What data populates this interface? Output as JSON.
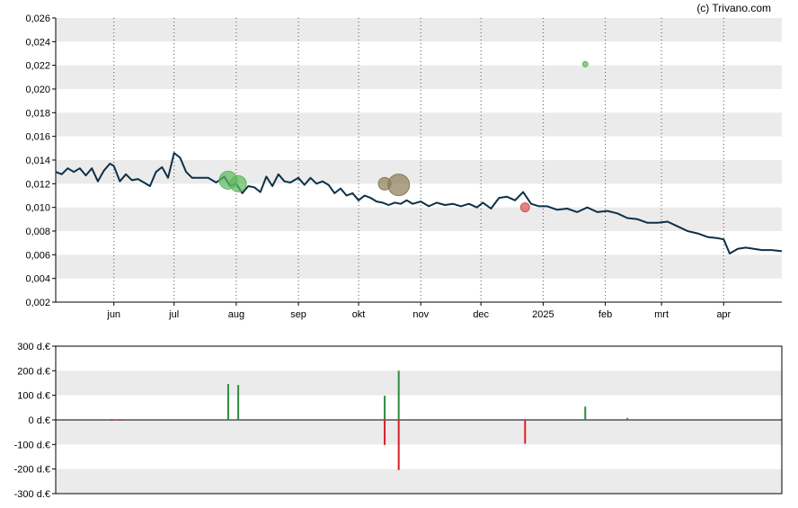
{
  "credit": "(c) Trivano.com",
  "chart_data": [
    {
      "type": "line",
      "x_ticks": [
        "jun",
        "jul",
        "aug",
        "sep",
        "okt",
        "nov",
        "dec",
        "2025",
        "feb",
        "mrt",
        "apr"
      ],
      "y_ticks": [
        "0,002",
        "0,004",
        "0,006",
        "0,008",
        "0,010",
        "0,012",
        "0,014",
        "0,016",
        "0,018",
        "0,020",
        "0,022",
        "0,024",
        "0,026"
      ],
      "ylim": [
        0.002,
        0.026
      ],
      "xlim": [
        "2024-05-03",
        "2025-04-30"
      ],
      "grid": true,
      "colors": {
        "line": "#0d3048",
        "band": "#ebebeb",
        "buy": "#5cb85c",
        "sell": "#d9534f",
        "big": "#8b7a55"
      },
      "series": [
        {
          "x": [
            "2024-05-03",
            "2024-05-06",
            "2024-05-09",
            "2024-05-12",
            "2024-05-15",
            "2024-05-18",
            "2024-05-21",
            "2024-05-24",
            "2024-05-27",
            "2024-05-30",
            "2024-06-01",
            "2024-06-04",
            "2024-06-07",
            "2024-06-10",
            "2024-06-13",
            "2024-06-16",
            "2024-06-19",
            "2024-06-22",
            "2024-06-25",
            "2024-06-28",
            "2024-07-01",
            "2024-07-04",
            "2024-07-07",
            "2024-07-10",
            "2024-07-14",
            "2024-07-18",
            "2024-07-22",
            "2024-07-26",
            "2024-07-29",
            "2024-08-01",
            "2024-08-04",
            "2024-08-07",
            "2024-08-10",
            "2024-08-13",
            "2024-08-16",
            "2024-08-19",
            "2024-08-22",
            "2024-08-25",
            "2024-08-28",
            "2024-09-01",
            "2024-09-04",
            "2024-09-07",
            "2024-09-10",
            "2024-09-13",
            "2024-09-16",
            "2024-09-19",
            "2024-09-22",
            "2024-09-25",
            "2024-09-28",
            "2024-10-01",
            "2024-10-04",
            "2024-10-07",
            "2024-10-10",
            "2024-10-13",
            "2024-10-16",
            "2024-10-19",
            "2024-10-22",
            "2024-10-25",
            "2024-10-28",
            "2024-11-01",
            "2024-11-05",
            "2024-11-09",
            "2024-11-13",
            "2024-11-17",
            "2024-11-21",
            "2024-11-25",
            "2024-11-29",
            "2024-12-02",
            "2024-12-06",
            "2024-12-10",
            "2024-12-14",
            "2024-12-18",
            "2024-12-22",
            "2024-12-26",
            "2024-12-30",
            "2025-01-03",
            "2025-01-08",
            "2025-01-13",
            "2025-01-18",
            "2025-01-23",
            "2025-01-28",
            "2025-02-02",
            "2025-02-07",
            "2025-02-12",
            "2025-02-17",
            "2025-02-22",
            "2025-02-27",
            "2025-03-04",
            "2025-03-09",
            "2025-03-14",
            "2025-03-19",
            "2025-03-24",
            "2025-03-29",
            "2025-04-01",
            "2025-04-04",
            "2025-04-08",
            "2025-04-12",
            "2025-04-16",
            "2025-04-20",
            "2025-04-25",
            "2025-04-30"
          ],
          "y": [
            0.013,
            0.0128,
            0.0133,
            0.013,
            0.0133,
            0.0127,
            0.0133,
            0.0122,
            0.0131,
            0.0137,
            0.0135,
            0.0122,
            0.0128,
            0.0123,
            0.0124,
            0.0121,
            0.0118,
            0.013,
            0.0134,
            0.0125,
            0.0146,
            0.0142,
            0.013,
            0.0125,
            0.0125,
            0.0125,
            0.0121,
            0.0126,
            0.0118,
            0.012,
            0.0112,
            0.0118,
            0.0117,
            0.0113,
            0.0126,
            0.0118,
            0.0128,
            0.0122,
            0.0121,
            0.0125,
            0.0119,
            0.0125,
            0.012,
            0.0122,
            0.0119,
            0.0112,
            0.0116,
            0.011,
            0.0112,
            0.0106,
            0.011,
            0.0108,
            0.0105,
            0.0104,
            0.0102,
            0.0104,
            0.0103,
            0.0106,
            0.0103,
            0.0105,
            0.0101,
            0.0104,
            0.0102,
            0.0103,
            0.0101,
            0.0103,
            0.01,
            0.0104,
            0.0099,
            0.0108,
            0.0109,
            0.0106,
            0.0113,
            0.0103,
            0.0101,
            0.0101,
            0.0098,
            0.0099,
            0.0096,
            0.01,
            0.0096,
            0.0097,
            0.0095,
            0.0091,
            0.009,
            0.0087,
            0.0087,
            0.0088,
            0.0084,
            0.008,
            0.0078,
            0.0075,
            0.0074,
            0.0073,
            0.0061,
            0.0065,
            0.0066,
            0.0065,
            0.0064,
            0.0064,
            0.0063
          ]
        }
      ],
      "markers": [
        {
          "date": "2024-07-28",
          "value": 0.0123,
          "kind": "buy",
          "size": 10
        },
        {
          "date": "2024-08-02",
          "value": 0.012,
          "kind": "buy",
          "size": 9
        },
        {
          "date": "2024-10-14",
          "value": 0.012,
          "kind": "big",
          "size": 7
        },
        {
          "date": "2024-10-21",
          "value": 0.0119,
          "kind": "big",
          "size": 12
        },
        {
          "date": "2024-12-23",
          "value": 0.01,
          "kind": "sell",
          "size": 5
        },
        {
          "date": "2025-01-22",
          "value": 0.0221,
          "kind": "buy",
          "size": 3
        }
      ]
    },
    {
      "type": "bar",
      "y_ticks": [
        "300 d.€",
        "200 d.€",
        "100 d.€",
        "0 d.€",
        "-100 d.€",
        "-200 d.€",
        "-300 d.€"
      ],
      "ylim": [
        -300,
        300
      ],
      "xlim": [
        "2024-05-03",
        "2025-04-30"
      ],
      "grid": true,
      "bars": [
        {
          "date": "2024-05-31",
          "value": -2
        },
        {
          "date": "2024-06-04",
          "value": -2
        },
        {
          "date": "2024-07-28",
          "value": 146
        },
        {
          "date": "2024-08-02",
          "value": 142
        },
        {
          "date": "2024-10-14",
          "value": 98
        },
        {
          "date": "2024-10-14",
          "value": -102
        },
        {
          "date": "2024-10-21",
          "value": 200
        },
        {
          "date": "2024-10-21",
          "value": -204
        },
        {
          "date": "2024-12-23",
          "value": -97
        },
        {
          "date": "2025-01-22",
          "value": 54
        },
        {
          "date": "2025-02-12",
          "value": 8
        }
      ]
    }
  ]
}
